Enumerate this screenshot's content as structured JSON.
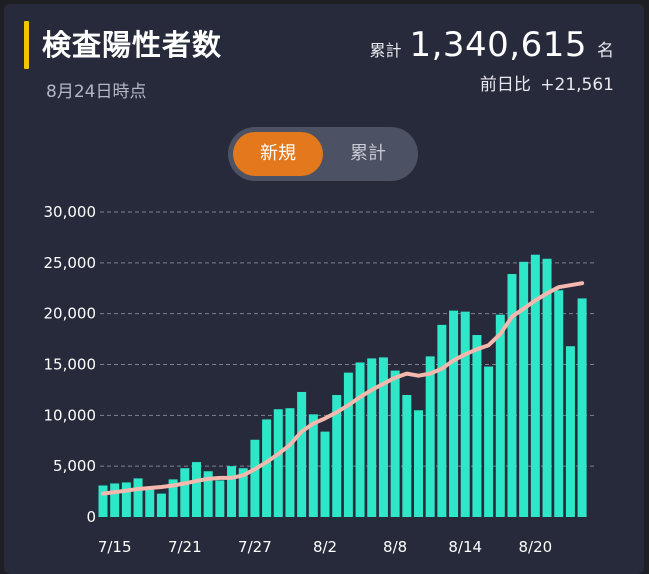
{
  "header": {
    "title": "検査陽性者数",
    "as_of": "8月24日時点",
    "total_label": "累計",
    "total_value": "1,340,615",
    "total_unit": "名",
    "diff_label": "前日比",
    "diff_value": "+21,561"
  },
  "toggle": {
    "new_label": "新規",
    "cumulative_label": "累計",
    "selected": "新規"
  },
  "colors": {
    "background": "#262a3b",
    "bar": "#2ee6c8",
    "average_line": "#f4b8ae",
    "accent": "#f2c500",
    "toggle_active": "#e3781c"
  },
  "chart_data": {
    "type": "bar",
    "ylim": [
      0,
      30000
    ],
    "y_ticks": [
      "30,000",
      "25,000",
      "20,000",
      "15,000",
      "10,000",
      "5,000",
      "0"
    ],
    "x_ticks": [
      "7/15",
      "7/21",
      "7/27",
      "8/2",
      "8/8",
      "8/14",
      "8/20"
    ],
    "grid": true,
    "series": [
      {
        "kind": "bar",
        "values": [
          3100,
          3300,
          3400,
          3800,
          2900,
          2300,
          3700,
          4800,
          5400,
          4500,
          3600,
          5000,
          4800,
          7600,
          9600,
          10600,
          10700,
          12300,
          10100,
          8400,
          12000,
          14200,
          15200,
          15600,
          15700,
          14400,
          12000,
          10500,
          15800,
          18900,
          20300,
          20200,
          17900,
          14800,
          19900,
          23900,
          25100,
          25800,
          25400,
          22300,
          16800,
          21500
        ]
      },
      {
        "kind": "line",
        "values": [
          2300,
          2450,
          2600,
          2750,
          2850,
          2950,
          3100,
          3300,
          3550,
          3750,
          3850,
          3850,
          4100,
          4700,
          5400,
          6200,
          7100,
          8400,
          9200,
          9700,
          10300,
          11000,
          11800,
          12500,
          13100,
          13700,
          14100,
          13900,
          14100,
          14600,
          15400,
          16000,
          16500,
          16900,
          18000,
          19700,
          20500,
          21300,
          22000,
          22600,
          22800,
          23000
        ]
      }
    ]
  }
}
